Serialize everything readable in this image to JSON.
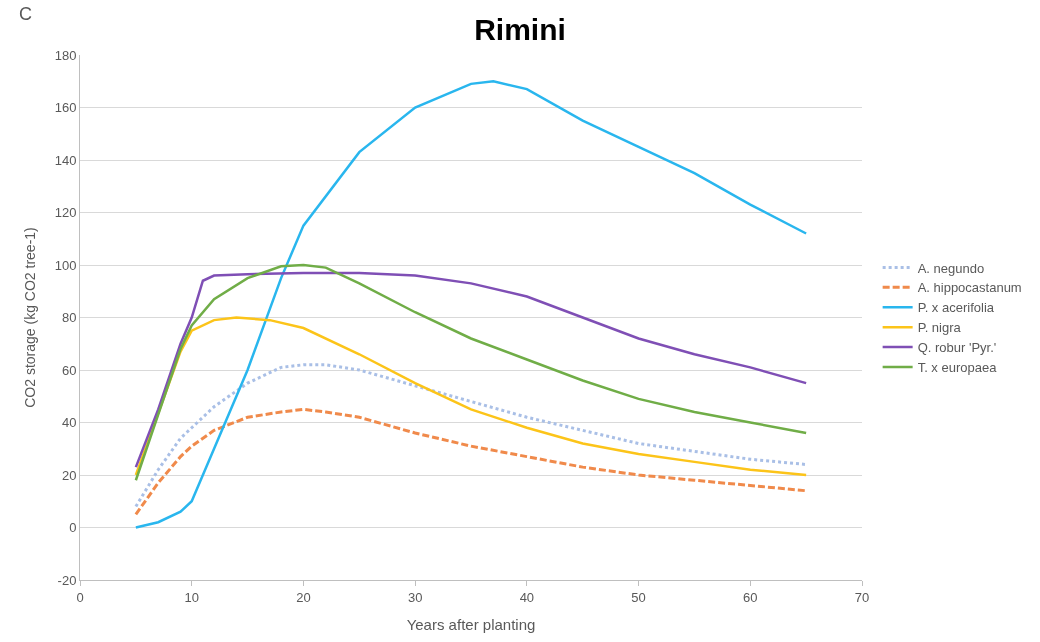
{
  "chart_data": {
    "type": "line",
    "title": "Rimini",
    "xlabel": "Years after planting",
    "ylabel": "CO2 storage (kg CO2 tree-1)",
    "annotations": [
      "C"
    ],
    "xlim": [
      0,
      70
    ],
    "xticks": [
      0,
      10,
      20,
      30,
      40,
      50,
      60,
      70
    ],
    "ylim": [
      -20,
      180
    ],
    "yticks": [
      -20,
      0,
      20,
      40,
      60,
      80,
      100,
      120,
      140,
      160,
      180
    ],
    "grid": "y",
    "legend": "right",
    "marker": "none",
    "series": [
      {
        "name": "A. negundo",
        "color": "#a9bfe6",
        "line_style": "dotted",
        "x": [
          5,
          7,
          9,
          10,
          12,
          15,
          18,
          20,
          22,
          25,
          30,
          35,
          40,
          45,
          50,
          55,
          60,
          65
        ],
        "values": [
          8,
          22,
          34,
          38,
          46,
          55,
          61,
          62,
          62,
          60,
          54,
          48,
          42,
          37,
          32,
          29,
          26,
          24
        ]
      },
      {
        "name": "A. hippocastanum",
        "color": "#f08a4b",
        "line_style": "dashed",
        "x": [
          5,
          7,
          9,
          10,
          12,
          15,
          18,
          20,
          22,
          25,
          30,
          35,
          40,
          45,
          50,
          55,
          60,
          65
        ],
        "values": [
          5,
          17,
          27,
          31,
          37,
          42,
          44,
          45,
          44,
          42,
          36,
          31,
          27,
          23,
          20,
          18,
          16,
          14
        ]
      },
      {
        "name": "P. x acerifolia",
        "color": "#29b6ee",
        "line_style": "solid",
        "x": [
          5,
          7,
          9,
          10,
          12,
          15,
          18,
          20,
          25,
          30,
          35,
          37,
          40,
          45,
          50,
          55,
          60,
          65
        ],
        "values": [
          0,
          2,
          6,
          10,
          30,
          60,
          95,
          115,
          143,
          160,
          169,
          170,
          167,
          155,
          145,
          135,
          123,
          112
        ]
      },
      {
        "name": "P. nigra",
        "color": "#fcc419",
        "line_style": "solid",
        "x": [
          5,
          9,
          10,
          12,
          14,
          17,
          20,
          25,
          30,
          35,
          40,
          45,
          50,
          55,
          60,
          65
        ],
        "values": [
          20,
          67,
          75,
          79,
          80,
          79,
          76,
          66,
          55,
          45,
          38,
          32,
          28,
          25,
          22,
          20
        ]
      },
      {
        "name": "Q. robur 'Pyr.'",
        "color": "#7f4fb5",
        "line_style": "solid",
        "x": [
          5,
          7,
          9,
          10,
          11,
          12,
          15,
          20,
          25,
          30,
          35,
          40,
          45,
          50,
          55,
          60,
          65
        ],
        "values": [
          23,
          45,
          70,
          80,
          94,
          96,
          96.5,
          97,
          97,
          96,
          93,
          88,
          80,
          72,
          66,
          61,
          55
        ]
      },
      {
        "name": "T. x europaea",
        "color": "#70ad47",
        "line_style": "solid",
        "x": [
          5,
          7,
          9,
          10,
          12,
          15,
          18,
          20,
          22,
          25,
          30,
          35,
          40,
          45,
          50,
          55,
          60,
          65
        ],
        "values": [
          18,
          43,
          68,
          77,
          87,
          95,
          99.5,
          100,
          99,
          93,
          82,
          72,
          64,
          56,
          49,
          44,
          40,
          36
        ]
      }
    ]
  }
}
